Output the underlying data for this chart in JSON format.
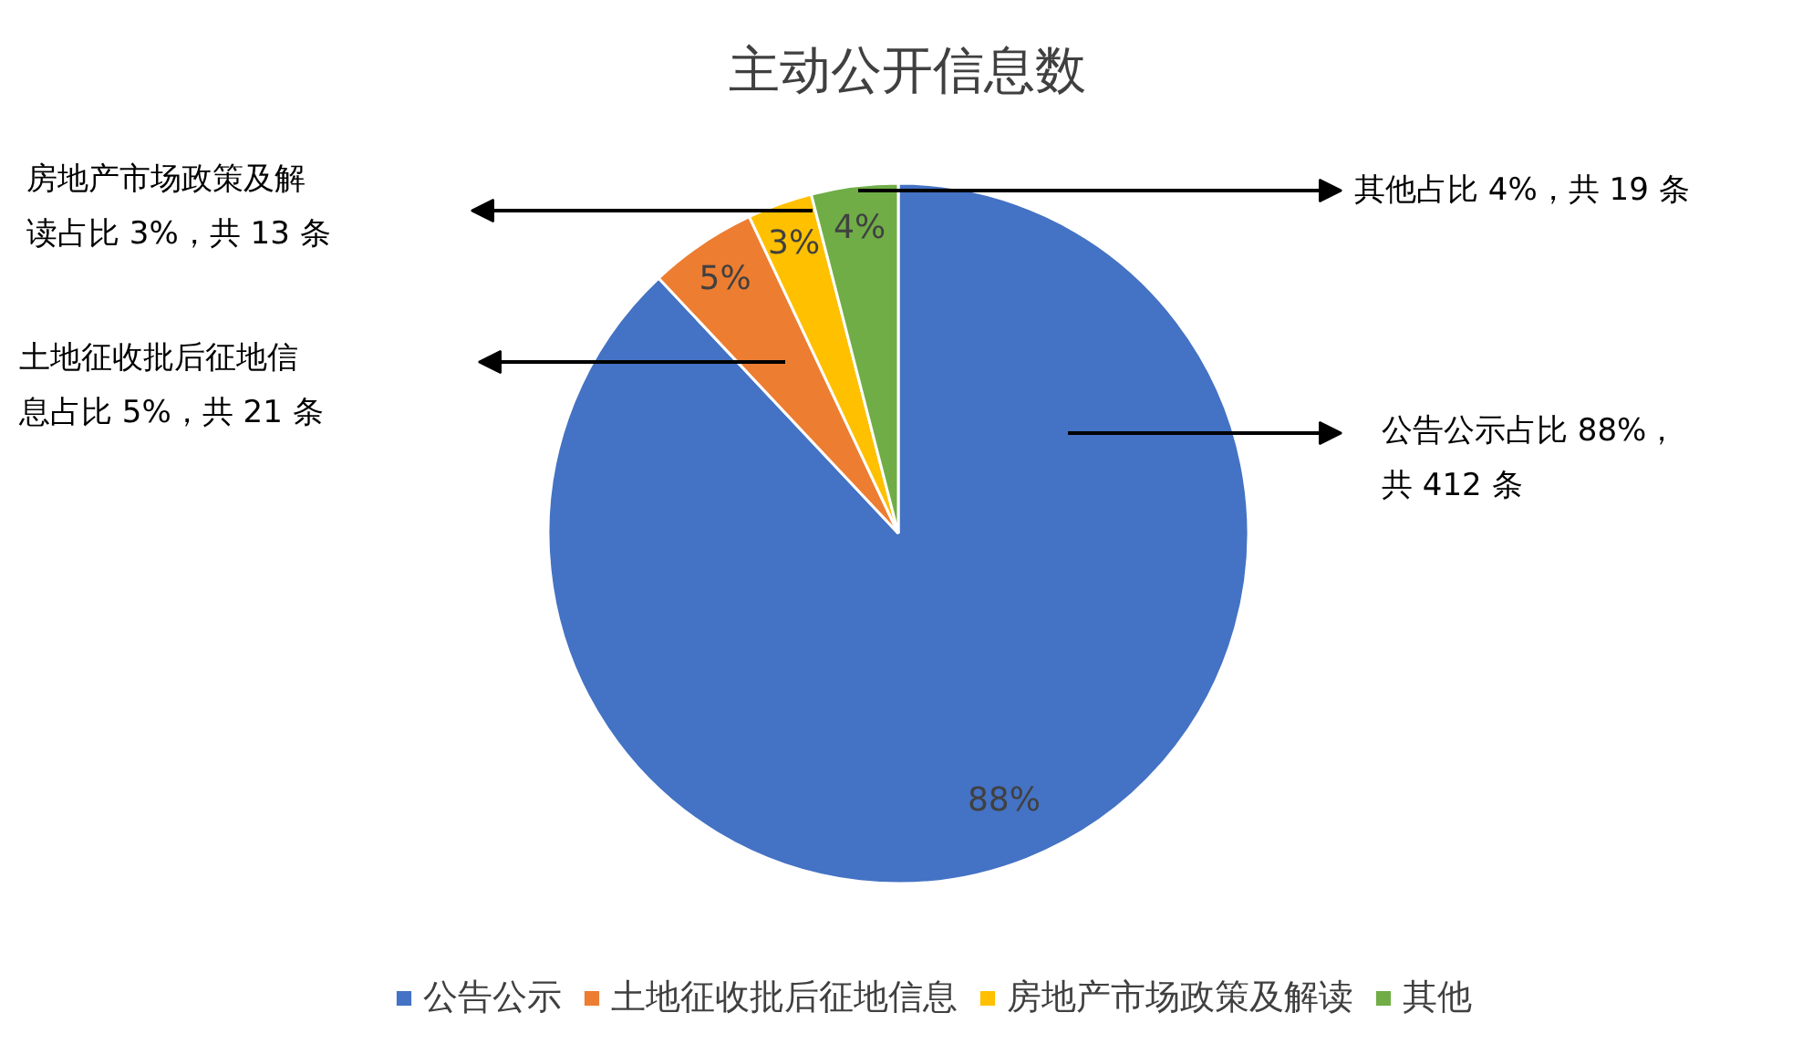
{
  "chart_data": {
    "type": "pie",
    "title": "主动公开信息数",
    "categories": [
      "公告公示",
      "土地征收批后征地信息",
      "房地产市场政策及解读",
      "其他"
    ],
    "values": [
      88,
      5,
      3,
      4
    ],
    "colors": [
      "#4472c4",
      "#ed7d31",
      "#ffc000",
      "#70ad47"
    ],
    "value_labels": [
      "88%",
      "5%",
      "3%",
      "4%"
    ],
    "annotations": [
      "公告公示占比 88%，共 412 条",
      "土地征收批后征地信息占比 5%，共 21 条",
      "房地产市场政策及解读占比 3%，共 13 条",
      "其他占比 4%，共 19 条"
    ],
    "legend": "bottom"
  }
}
